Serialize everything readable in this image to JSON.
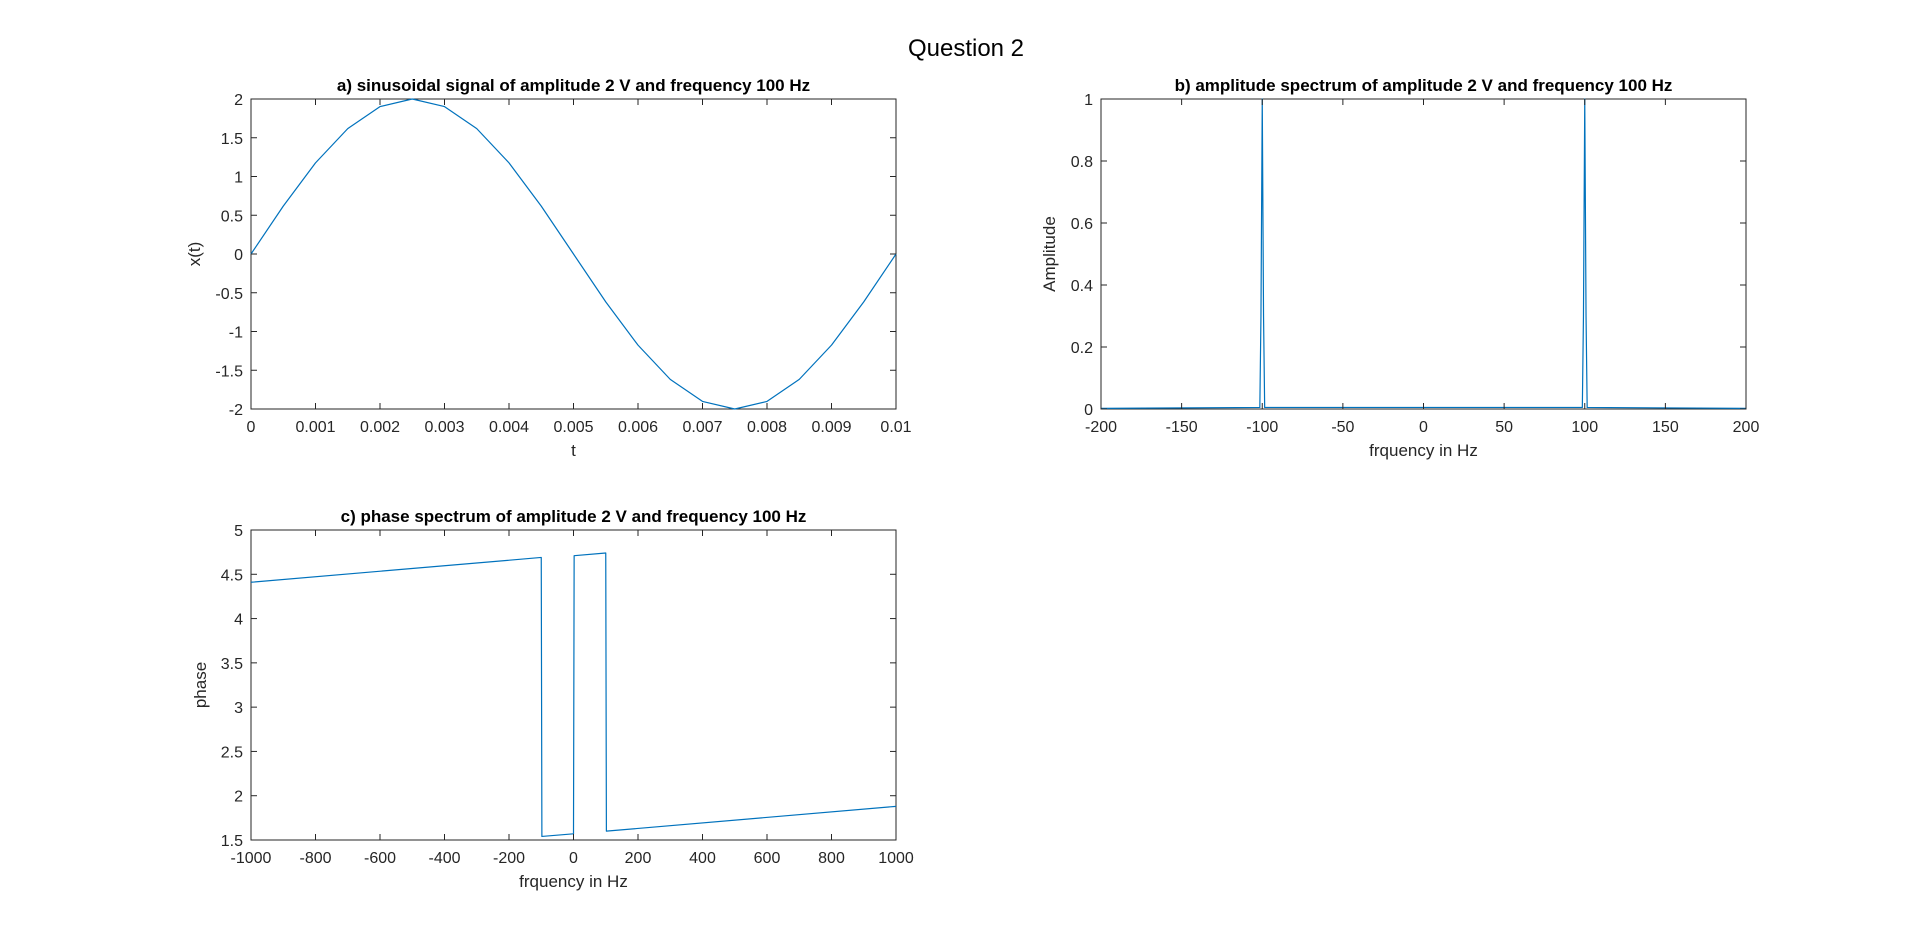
{
  "figure": {
    "title": "Question 2"
  },
  "colors": {
    "series": "#0072BD",
    "axes": "#262626",
    "background": "#ffffff"
  },
  "chart_data": [
    {
      "id": "a",
      "type": "line",
      "title": "a) sinusoidal signal of amplitude 2 V and frequency 100 Hz",
      "xlabel": "t",
      "ylabel": "x(t)",
      "xlim": [
        0,
        0.01
      ],
      "ylim": [
        -2,
        2
      ],
      "xticks": [
        0,
        0.001,
        0.002,
        0.003,
        0.004,
        0.005,
        0.006,
        0.007,
        0.008,
        0.009,
        0.01
      ],
      "xtick_labels": [
        "0",
        "0.001",
        "0.002",
        "0.003",
        "0.004",
        "0.005",
        "0.006",
        "0.007",
        "0.008",
        "0.009",
        "0.01"
      ],
      "yticks": [
        -2,
        -1.5,
        -1,
        -0.5,
        0,
        0.5,
        1,
        1.5,
        2
      ],
      "ytick_labels": [
        "-2",
        "-1.5",
        "-1",
        "-0.5",
        "0",
        "0.5",
        "1",
        "1.5",
        "2"
      ],
      "grid": false,
      "series": [
        {
          "x": [
            0,
            0.0005,
            0.001,
            0.0015,
            0.002,
            0.0025,
            0.003,
            0.0035,
            0.004,
            0.0045,
            0.005,
            0.0055,
            0.006,
            0.0065,
            0.007,
            0.0075,
            0.008,
            0.0085,
            0.009,
            0.0095,
            0.01
          ],
          "y": [
            0,
            0.618,
            1.176,
            1.618,
            1.902,
            2,
            1.902,
            1.618,
            1.176,
            0.618,
            0,
            -0.618,
            -1.176,
            -1.618,
            -1.902,
            -2,
            -1.902,
            -1.618,
            -1.176,
            -0.618,
            0
          ]
        }
      ]
    },
    {
      "id": "b",
      "type": "line",
      "title": "b) amplitude spectrum of amplitude 2 V and frequency 100 Hz",
      "xlabel": "frquency in Hz",
      "ylabel": "Amplitude",
      "xlim": [
        -200,
        200
      ],
      "ylim": [
        0,
        1
      ],
      "xticks": [
        -200,
        -150,
        -100,
        -50,
        0,
        50,
        100,
        150,
        200
      ],
      "xtick_labels": [
        "-200",
        "-150",
        "-100",
        "-50",
        "0",
        "50",
        "100",
        "150",
        "200"
      ],
      "yticks": [
        0,
        0.2,
        0.4,
        0.6,
        0.8,
        1
      ],
      "ytick_labels": [
        "0",
        "0.2",
        "0.4",
        "0.6",
        "0.8",
        "1"
      ],
      "grid": false,
      "series": [
        {
          "x": [
            -200,
            -101.5,
            -100.8,
            -100,
            -99.2,
            -98.5,
            98.5,
            99.2,
            100,
            100.8,
            101.5,
            200
          ],
          "y": [
            0.002,
            0.005,
            0.3,
            1,
            0.3,
            0.005,
            0.005,
            0.3,
            1,
            0.3,
            0.005,
            0.002
          ]
        }
      ]
    },
    {
      "id": "c",
      "type": "line",
      "title": "c) phase spectrum of amplitude 2 V and frequency 100 Hz",
      "xlabel": "frquency in Hz",
      "ylabel": "phase",
      "xlim": [
        -1000,
        1000
      ],
      "ylim": [
        1.5,
        5
      ],
      "xticks": [
        -1000,
        -800,
        -600,
        -400,
        -200,
        0,
        200,
        400,
        600,
        800,
        1000
      ],
      "xtick_labels": [
        "-1000",
        "-800",
        "-600",
        "-400",
        "-200",
        "0",
        "200",
        "400",
        "600",
        "800",
        "1000"
      ],
      "yticks": [
        1.5,
        2,
        2.5,
        3,
        3.5,
        4,
        4.5,
        5
      ],
      "ytick_labels": [
        "1.5",
        "2",
        "2.5",
        "3",
        "3.5",
        "4",
        "4.5",
        "5"
      ],
      "grid": false,
      "series": [
        {
          "x": [
            -1000,
            -100,
            -98,
            0,
            2,
            100,
            102,
            1000
          ],
          "y": [
            4.41,
            4.69,
            1.54,
            1.57,
            4.71,
            4.74,
            1.6,
            1.88
          ]
        }
      ]
    }
  ]
}
